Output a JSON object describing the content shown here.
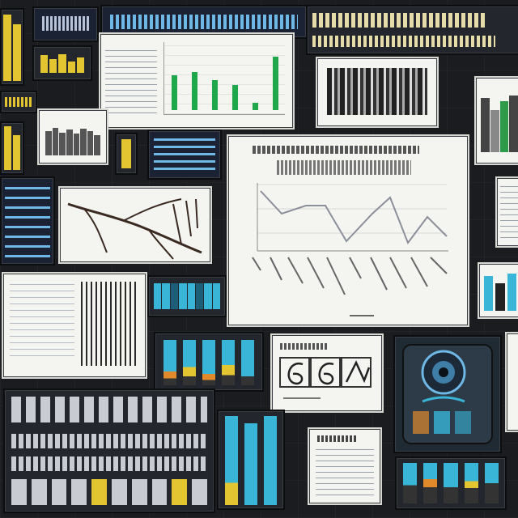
{
  "colors": {
    "background": "#1b1c1f",
    "accent_yellow": "#e2c531",
    "accent_cyan": "#39b5d8",
    "accent_green": "#1fa84a",
    "accent_orange": "#e08a2c",
    "paper": "#f4f4f1"
  },
  "icons": {
    "scribble": "scribble-icon",
    "eye_device": "eye-device-icon"
  }
}
